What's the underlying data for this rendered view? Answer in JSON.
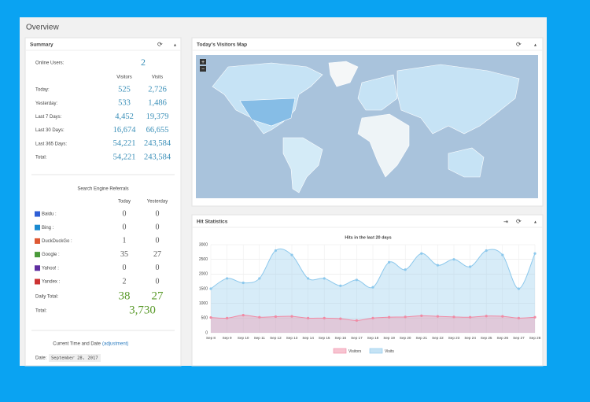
{
  "header": {
    "title": "Overview"
  },
  "summary": {
    "title": "Summary",
    "online_label": "Online Users:",
    "online_value": "2",
    "columns": [
      "Visitors",
      "Visits"
    ],
    "rows": [
      [
        "Today:",
        "525",
        "2,726"
      ],
      [
        "Yesterday:",
        "533",
        "1,486"
      ],
      [
        "Last 7 Days:",
        "4,452",
        "19,379"
      ],
      [
        "Last 30 Days:",
        "16,674",
        "66,655"
      ],
      [
        "Last 365 Days:",
        "54,221",
        "243,584"
      ],
      [
        "Total:",
        "54,221",
        "243,584"
      ]
    ]
  },
  "referrals": {
    "title": "Search Engine Referrals",
    "columns": [
      "Today",
      "Yesterday"
    ],
    "rows": [
      [
        "Baidu :",
        "0",
        "0"
      ],
      [
        "Bing :",
        "0",
        "0"
      ],
      [
        "DuckDuckGo :",
        "1",
        "0"
      ],
      [
        "Google :",
        "35",
        "27"
      ],
      [
        "Yahoo! :",
        "0",
        "0"
      ],
      [
        "Yandex :",
        "2",
        "0"
      ]
    ],
    "daily_total": [
      "Daily Total:",
      "38",
      "27"
    ],
    "total": [
      "Total:",
      "3,730"
    ]
  },
  "time": {
    "title": "Current Time and Date",
    "link": "(adjustment)",
    "date_label": "Date:",
    "date_value": "September 28, 2017"
  },
  "map": {
    "title": "Today's Visitors Map",
    "zoom_in": "+",
    "zoom_out": "−"
  },
  "hits": {
    "title": "Hit Statistics"
  },
  "chart_data": {
    "type": "line",
    "title": "Hits in the last 20 days",
    "categories": [
      "Sep 8",
      "Sep 9",
      "Sep 10",
      "Sep 11",
      "Sep 12",
      "Sep 13",
      "Sep 14",
      "Sep 15",
      "Sep 16",
      "Sep 17",
      "Sep 18",
      "Sep 19",
      "Sep 20",
      "Sep 21",
      "Sep 22",
      "Sep 23",
      "Sep 24",
      "Sep 25",
      "Sep 26",
      "Sep 27",
      "Sep 28"
    ],
    "series": [
      {
        "name": "Visits",
        "color": "#8cc8ec",
        "values": [
          1500,
          1850,
          1700,
          1850,
          2800,
          2650,
          1850,
          1850,
          1600,
          1800,
          1550,
          2400,
          2150,
          2700,
          2300,
          2500,
          2250,
          2800,
          2650,
          1500,
          2700
        ]
      },
      {
        "name": "Visitors",
        "color": "#f08aa4",
        "values": [
          520,
          500,
          600,
          530,
          550,
          560,
          500,
          500,
          480,
          420,
          500,
          530,
          540,
          580,
          560,
          540,
          530,
          570,
          560,
          500,
          530
        ]
      }
    ],
    "legend_order": [
      1,
      0
    ],
    "ylim": [
      0,
      3000
    ],
    "yticks": [
      0,
      500,
      1000,
      1500,
      2000,
      2500,
      3000
    ],
    "grid": true
  }
}
